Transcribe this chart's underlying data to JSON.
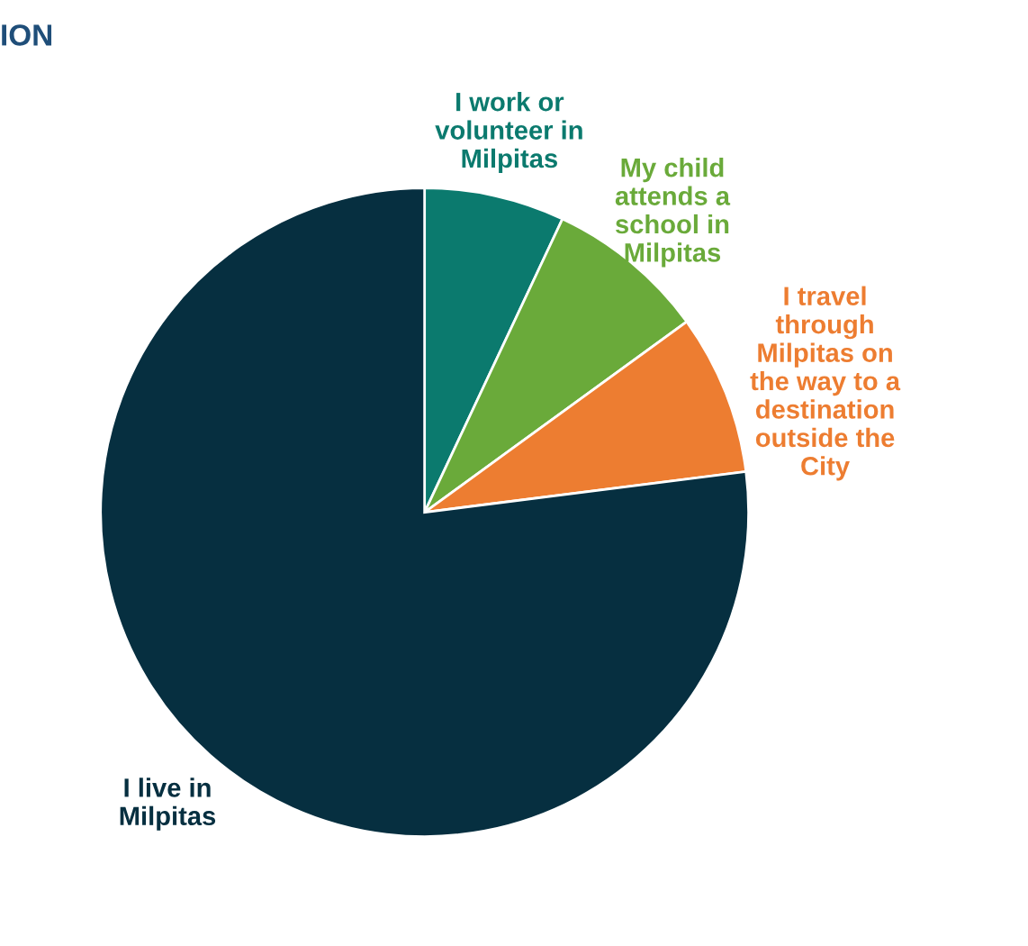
{
  "chart_data": {
    "type": "pie",
    "title": "ION",
    "categories": [
      "I work or\nvolunteer in\nMilpitas",
      "My child\nattends a\nschool in\nMilpitas",
      "I travel\nthrough\nMilpitas on\nthe way to a\ndestination\noutside the\nCity",
      "I live in\nMilpitas"
    ],
    "values": [
      7,
      8,
      8,
      77
    ],
    "colors": [
      "#0b7a6e",
      "#6aaa3a",
      "#ed7d31",
      "#062f40"
    ],
    "legend": false
  }
}
